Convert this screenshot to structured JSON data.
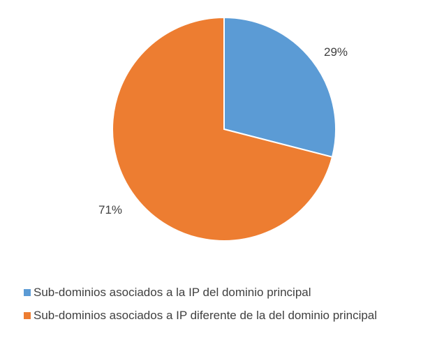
{
  "chart_data": {
    "type": "pie",
    "categories": [
      "Sub-dominios asociados a la IP del dominio principal",
      "Sub-dominios asociados a IP diferente de la del dominio principal"
    ],
    "values": [
      29,
      71
    ],
    "labels": [
      "29%",
      "71%"
    ],
    "colors": [
      "#5b9bd5",
      "#ed7d31"
    ],
    "legend_position": "bottom",
    "start_angle_deg": 0,
    "direction": "clockwise"
  }
}
